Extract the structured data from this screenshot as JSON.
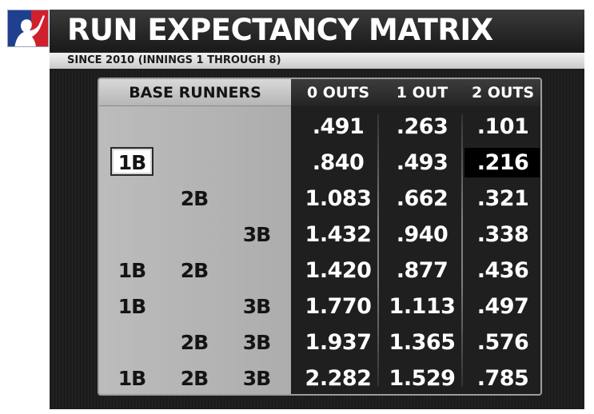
{
  "header": {
    "title": "RUN EXPECTANCY MATRIX",
    "subtitle": "SINCE 2010 (INNINGS 1 THROUGH 8)"
  },
  "logo": {
    "icon": "mlb-batter-logo-icon",
    "colors": [
      "#1f3f8f",
      "#d0202e"
    ]
  },
  "matrix": {
    "headers": {
      "base_runners": "BASE RUNNERS",
      "outs": [
        "0 OUTS",
        "1 OUT",
        "2 OUTS"
      ]
    },
    "rows": [
      {
        "first": "",
        "second": "",
        "third": "",
        "values": [
          ".491",
          ".263",
          ".101"
        ]
      },
      {
        "first": "1B",
        "second": "",
        "third": "",
        "values": [
          ".840",
          ".493",
          ".216"
        ],
        "highlighted": true
      },
      {
        "first": "",
        "second": "2B",
        "third": "",
        "values": [
          "1.083",
          ".662",
          ".321"
        ]
      },
      {
        "first": "",
        "second": "",
        "third": "3B",
        "values": [
          "1.432",
          ".940",
          ".338"
        ]
      },
      {
        "first": "1B",
        "second": "2B",
        "third": "",
        "values": [
          "1.420",
          ".877",
          ".436"
        ]
      },
      {
        "first": "1B",
        "second": "",
        "third": "3B",
        "values": [
          "1.770",
          "1.113",
          ".497"
        ]
      },
      {
        "first": "",
        "second": "2B",
        "third": "3B",
        "values": [
          "1.937",
          "1.365",
          ".576"
        ]
      },
      {
        "first": "1B",
        "second": "2B",
        "third": "3B",
        "values": [
          "2.282",
          "1.529",
          ".785"
        ]
      }
    ]
  }
}
